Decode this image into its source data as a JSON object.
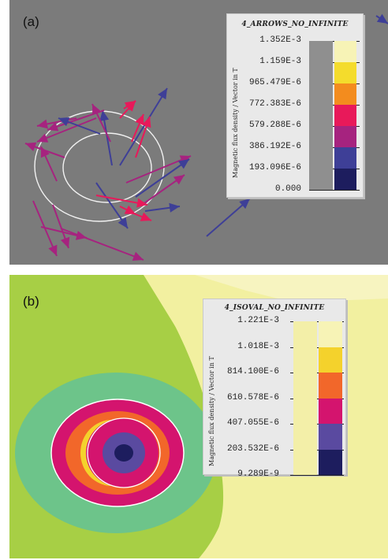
{
  "panels": {
    "a": {
      "label": "(a)",
      "legend": {
        "title": "4_ARROWS_NO_INFINITE",
        "quantity_label": "Magnetic flux density / Vector in T",
        "values": [
          "1.352E-3",
          "1.159E-3",
          "965.479E-6",
          "772.383E-6",
          "579.288E-6",
          "386.192E-6",
          "193.096E-6",
          "0.000"
        ],
        "colors": [
          "#f7f3b6",
          "#f4dc2c",
          "#f38c1e",
          "#e8195a",
          "#a6237f",
          "#3e3f97",
          "#1d1d5e"
        ]
      }
    },
    "b": {
      "label": "(b)",
      "legend": {
        "title": "4_ISOVAL_NO_INFINITE",
        "quantity_label": "Magnetic flux density / Vector in T",
        "values": [
          "1.221E-3",
          "1.018E-3",
          "814.100E-6",
          "610.578E-6",
          "407.055E-6",
          "203.532E-6",
          "9.289E-9"
        ],
        "colors": [
          "#f7f3b6",
          "#f4d22c",
          "#f2672a",
          "#d4146e",
          "#5a4aa0",
          "#1d1d5e"
        ]
      }
    }
  },
  "colors": {
    "background_a": "#7b7b7b",
    "field_b_light": "#f2f0a0",
    "field_b_green": "#a7cf45",
    "field_b_teal": "#6dc48a"
  }
}
